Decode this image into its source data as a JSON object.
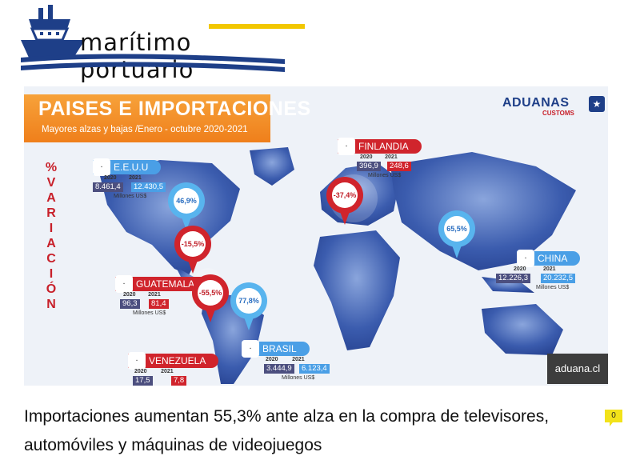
{
  "site": {
    "logo_text": "marítimo portuario"
  },
  "infographic": {
    "title": "PAISES E IMPORTACIONES",
    "subtitle": "Mayores alzas y bajas /Enero - octubre 2020-2021",
    "brand": "ADUANAS",
    "brand_sub": "CUSTOMS",
    "side_label": [
      "%",
      "V",
      "A",
      "R",
      "I",
      "A",
      "C",
      "I",
      "Ó",
      "N"
    ],
    "countries": [
      {
        "name": "E.E.U.U",
        "y2020": "8.461,4",
        "y2021": "12.430,5",
        "unit": "Millones US$",
        "pct": "46,9%",
        "tone": "blue"
      },
      {
        "name": "FINLANDIA",
        "y2020": "396,9",
        "y2021": "248,6",
        "unit": "Millones US$",
        "pct": "-37,4%",
        "tone": "red"
      },
      {
        "name": "CHINA",
        "y2020": "12.226,3",
        "y2021": "20.232,5",
        "unit": "Millones US$",
        "pct": "65,5%",
        "tone": "blue"
      },
      {
        "name": "GUATEMALA",
        "y2020": "96,3",
        "y2021": "81,4",
        "unit": "Millones US$",
        "pct": "-15,5%",
        "tone": "red"
      },
      {
        "name": "VENEZUELA",
        "y2020": "17,5",
        "y2021": "7,8",
        "unit": "",
        "pct": "-55,5%",
        "tone": "red"
      },
      {
        "name": "BRASIL",
        "y2020": "3.444,9",
        "y2021": "6.123,4",
        "unit": "Millones US$",
        "pct": "77,8%",
        "tone": "blue"
      }
    ],
    "year_a": "2020",
    "year_b": "2021",
    "credit": "aduana.cl"
  },
  "article": {
    "headline": "Importaciones aumentan 55,3% ante alza en la compra de televisores, automóviles y máquinas de videojuegos",
    "comment_count": "0"
  }
}
